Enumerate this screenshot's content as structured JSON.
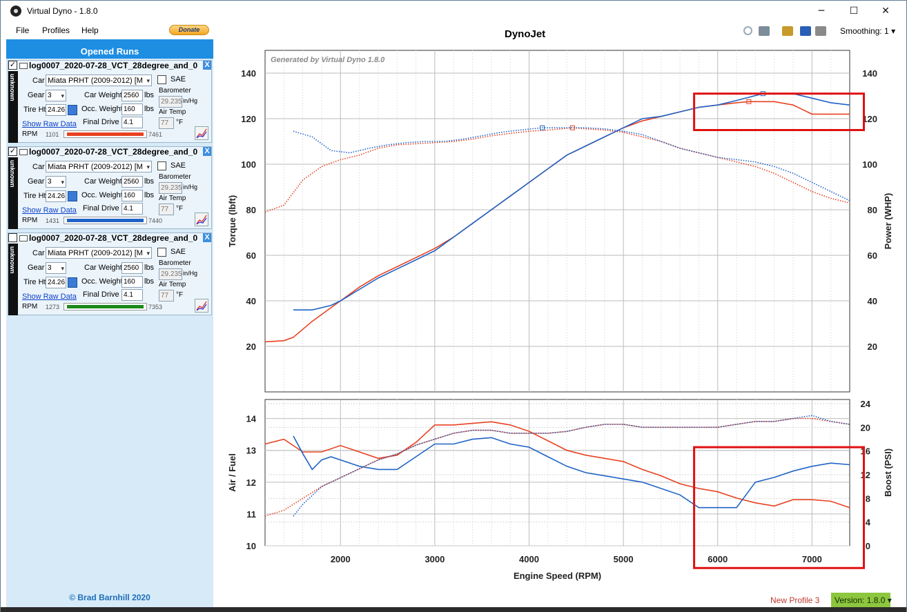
{
  "window": {
    "title": "Virtual Dyno - 1.8.0",
    "minimize": "─",
    "maximize": "☐",
    "close": "✕"
  },
  "menu": {
    "file": "File",
    "profiles": "Profiles",
    "help": "Help",
    "donate": "Donate"
  },
  "sidebar": {
    "header": "Opened Runs",
    "copyright": "© Brad Barnhill 2020",
    "runs": [
      {
        "checked": true,
        "title": "log0007_2020-07-28_VCT_28degree_and_0",
        "side_label": "unknown",
        "car_label": "Car",
        "car": "Miata PRHT (2009-2012) [M",
        "sae_label": "SAE",
        "gear_label": "Gear",
        "gear": "3",
        "weight_label": "Car Weight",
        "weight": "2560",
        "weight_unit": "lbs",
        "baro_label": "Barometer",
        "baro": "29.235",
        "baro_unit": "in/Hg",
        "tire_label": "Tire Ht",
        "tire": "24.26",
        "occ_label": "Occ. Weight",
        "occ": "160",
        "occ_unit": "lbs",
        "airtemp_label": "Air Temp",
        "airtemp": "77",
        "airtemp_unit": "°F",
        "raw_label": "Show Raw Data",
        "fd_label": "Final Drive",
        "fd": "4.1",
        "rpm_label": "RPM",
        "rpm_min": "1101",
        "rpm_max": "7461",
        "color": "#e8411f"
      },
      {
        "checked": true,
        "title": "log0007_2020-07-28_VCT_28degree_and_0",
        "side_label": "unknown",
        "car_label": "Car",
        "car": "Miata PRHT (2009-2012) [M",
        "sae_label": "SAE",
        "gear_label": "Gear",
        "gear": "3",
        "weight_label": "Car Weight",
        "weight": "2560",
        "weight_unit": "lbs",
        "baro_label": "Barometer",
        "baro": "29.235",
        "baro_unit": "in/Hg",
        "tire_label": "Tire Ht",
        "tire": "24.26",
        "occ_label": "Occ. Weight",
        "occ": "160",
        "occ_unit": "lbs",
        "airtemp_label": "Air Temp",
        "airtemp": "77",
        "airtemp_unit": "°F",
        "raw_label": "Show Raw Data",
        "fd_label": "Final Drive",
        "fd": "4.1",
        "rpm_label": "RPM",
        "rpm_min": "1431",
        "rpm_max": "7440",
        "color": "#1f63c6"
      },
      {
        "checked": false,
        "title": "log0007_2020-07-28_VCT_28degree_and_0",
        "side_label": "unknown",
        "car_label": "Car",
        "car": "Miata PRHT (2009-2012) [M",
        "sae_label": "SAE",
        "gear_label": "Gear",
        "gear": "3",
        "weight_label": "Car Weight",
        "weight": "2560",
        "weight_unit": "lbs",
        "baro_label": "Barometer",
        "baro": "29.235",
        "baro_unit": "in/Hg",
        "tire_label": "Tire Ht",
        "tire": "24.26",
        "occ_label": "Occ. Weight",
        "occ": "160",
        "occ_unit": "lbs",
        "airtemp_label": "Air Temp",
        "airtemp": "77",
        "airtemp_unit": "°F",
        "raw_label": "Show Raw Data",
        "fd_label": "Final Drive",
        "fd": "4.1",
        "rpm_label": "RPM",
        "rpm_min": "1273",
        "rpm_max": "7353",
        "color": "#1a8a1a"
      }
    ]
  },
  "toolbar": {
    "smoothing": "Smoothing: 1"
  },
  "footer": {
    "profile": "New Profile 3",
    "version": "Version: 1.8.0"
  },
  "chart_data": [
    {
      "type": "line",
      "title": "DynoJet",
      "watermark": "Generated by Virtual Dyno 1.8.0",
      "xlabel": "Engine Speed (RPM)",
      "ylabel": "Torque (lbft)",
      "y2label": "Power (WHP)",
      "xlim": [
        1200,
        7400
      ],
      "ylim": [
        0,
        150
      ],
      "y2lim": [
        0,
        150
      ],
      "yticks": [
        20,
        40,
        60,
        80,
        100,
        120,
        140
      ],
      "grid": true,
      "series": [
        {
          "color": "#e8411f",
          "style": "dotted",
          "axis": "y",
          "x": [
            1200,
            1400,
            1600,
            1800,
            2000,
            2200,
            2400,
            2600,
            2800,
            3000,
            3200,
            3400,
            3600,
            3800,
            4000,
            4200,
            4460,
            4600,
            4800,
            5000,
            5200,
            5400,
            5600,
            5800,
            6000,
            6200,
            6400,
            6600,
            6800,
            7000,
            7200,
            7400
          ],
          "y": [
            79,
            82,
            93,
            99,
            102,
            104,
            107,
            108.5,
            109,
            109.5,
            110,
            111,
            112.5,
            113.5,
            114.5,
            115,
            116,
            115.5,
            115,
            114,
            112,
            110,
            107,
            105,
            103,
            101,
            99,
            96,
            92,
            88,
            85,
            83
          ]
        },
        {
          "color": "#1f63c6",
          "style": "dotted",
          "axis": "y",
          "x": [
            1500,
            1700,
            1900,
            2100,
            2300,
            2500,
            2700,
            2900,
            3100,
            3300,
            3500,
            3700,
            3900,
            4140,
            4400,
            4600,
            4800,
            5000,
            5200,
            5400,
            5600,
            5800,
            6000,
            6200,
            6400,
            6600,
            6800,
            7000,
            7200,
            7400
          ],
          "y": [
            114.5,
            112,
            106,
            105,
            107,
            108.5,
            109.5,
            110,
            110,
            111,
            112.5,
            114,
            115,
            116,
            116,
            116,
            115.5,
            114.5,
            113,
            110,
            107,
            105,
            103,
            102,
            101,
            99,
            96,
            92,
            88,
            84
          ]
        },
        {
          "color": "#e8411f",
          "style": "solid",
          "axis": "y2",
          "x": [
            1200,
            1400,
            1500,
            1700,
            1900,
            2000,
            2200,
            2400,
            2600,
            2800,
            3000,
            3200,
            3400,
            3600,
            3800,
            4000,
            4200,
            4400,
            4600,
            4800,
            5000,
            5200,
            5400,
            5600,
            5800,
            6000,
            6200,
            6330,
            6600,
            6800,
            6900,
            7000,
            7200,
            7400
          ],
          "y": [
            22,
            22.5,
            24,
            31,
            37,
            40,
            46,
            51,
            55,
            59,
            63,
            68,
            74,
            80,
            86,
            92,
            98,
            104,
            108,
            112,
            116,
            119,
            121,
            123,
            125,
            126,
            127,
            127.5,
            127.5,
            126,
            124,
            122,
            122,
            122
          ]
        },
        {
          "color": "#1f63c6",
          "style": "solid",
          "axis": "y2",
          "x": [
            1500,
            1700,
            1900,
            2000,
            2200,
            2400,
            2600,
            2800,
            3000,
            3200,
            3400,
            3600,
            3800,
            4000,
            4200,
            4400,
            4600,
            4800,
            5000,
            5200,
            5400,
            5600,
            5800,
            6000,
            6200,
            6480,
            6600,
            6800,
            7000,
            7200,
            7400
          ],
          "y": [
            36,
            36,
            38,
            40,
            45,
            50,
            54,
            58,
            62,
            68,
            74,
            80,
            86,
            92,
            98,
            104,
            108,
            112,
            116,
            120,
            121,
            123,
            125,
            126,
            128,
            131,
            131,
            131,
            129,
            127,
            126
          ]
        }
      ],
      "markers": [
        {
          "x": 4140,
          "y": 116,
          "color": "#1f63c6"
        },
        {
          "x": 4460,
          "y": 116,
          "color": "#e8411f"
        },
        {
          "x": 6480,
          "y": 131,
          "color": "#1f63c6"
        },
        {
          "x": 6330,
          "y": 127.5,
          "color": "#e8411f"
        }
      ],
      "highlight": {
        "x": [
          5750,
          7550
        ],
        "y": [
          115,
          131
        ]
      }
    },
    {
      "type": "line",
      "xlabel": "Engine Speed (RPM)",
      "ylabel": "Air / Fuel",
      "y2label": "Boost (PSI)",
      "xlim": [
        1200,
        7400
      ],
      "ylim": [
        10,
        14.6
      ],
      "y2lim": [
        0,
        24.7
      ],
      "yticks": [
        10,
        11,
        12,
        13,
        14
      ],
      "y2ticks": [
        0,
        4,
        8,
        12,
        16,
        20,
        24
      ],
      "xticks": [
        2000,
        3000,
        4000,
        5000,
        6000,
        7000
      ],
      "grid": true,
      "series": [
        {
          "color": "#e8411f",
          "style": "solid",
          "axis": "y",
          "x": [
            1200,
            1400,
            1600,
            1800,
            2000,
            2200,
            2400,
            2600,
            2800,
            3000,
            3200,
            3400,
            3600,
            3800,
            4000,
            4200,
            4400,
            4600,
            4800,
            5000,
            5200,
            5400,
            5600,
            5800,
            6000,
            6200,
            6400,
            6600,
            6800,
            7000,
            7200,
            7400
          ],
          "y": [
            13.2,
            13.35,
            12.95,
            12.95,
            13.15,
            12.95,
            12.75,
            12.85,
            13.25,
            13.8,
            13.8,
            13.85,
            13.9,
            13.8,
            13.6,
            13.3,
            13.0,
            12.85,
            12.75,
            12.65,
            12.4,
            12.2,
            11.95,
            11.8,
            11.7,
            11.5,
            11.35,
            11.25,
            11.45,
            11.45,
            11.4,
            11.2
          ]
        },
        {
          "color": "#1f63c6",
          "style": "solid",
          "axis": "y",
          "x": [
            1500,
            1600,
            1700,
            1800,
            1900,
            2000,
            2200,
            2400,
            2600,
            2800,
            3000,
            3200,
            3400,
            3600,
            3800,
            4000,
            4200,
            4400,
            4600,
            4800,
            5000,
            5200,
            5400,
            5600,
            5800,
            6000,
            6200,
            6400,
            6600,
            6800,
            7000,
            7200,
            7400
          ],
          "y": [
            13.45,
            12.9,
            12.4,
            12.7,
            12.8,
            12.7,
            12.5,
            12.4,
            12.4,
            12.8,
            13.2,
            13.2,
            13.35,
            13.4,
            13.2,
            13.1,
            12.8,
            12.5,
            12.3,
            12.2,
            12.1,
            12.0,
            11.8,
            11.6,
            11.2,
            11.2,
            11.2,
            12.0,
            12.15,
            12.35,
            12.5,
            12.6,
            12.55
          ]
        },
        {
          "color": "#e8411f",
          "style": "dotted",
          "axis": "y2",
          "x": [
            1200,
            1400,
            1600,
            1800,
            2000,
            2200,
            2400,
            2600,
            2800,
            3000,
            3200,
            3400,
            3600,
            3800,
            4000,
            4200,
            4400,
            4600,
            4800,
            5000,
            5200,
            5400,
            5600,
            5800,
            6000,
            6200,
            6400,
            6600,
            6800,
            7000,
            7200,
            7400
          ],
          "y": [
            5,
            6,
            8,
            10,
            11.5,
            13,
            14.5,
            15.5,
            17,
            18,
            19,
            19.5,
            19.5,
            19,
            19,
            19,
            19.3,
            20,
            20.5,
            20.5,
            20,
            20,
            20,
            20,
            20,
            20.5,
            21,
            21,
            21.5,
            21.5,
            21,
            20.5
          ]
        },
        {
          "color": "#1f63c6",
          "style": "dotted",
          "axis": "y2",
          "x": [
            1500,
            1600,
            1800,
            2000,
            2200,
            2400,
            2600,
            2800,
            3000,
            3200,
            3400,
            3600,
            3800,
            4000,
            4200,
            4400,
            4600,
            4800,
            5000,
            5200,
            5400,
            5600,
            5800,
            6000,
            6200,
            6400,
            6600,
            6800,
            7000,
            7200,
            7400
          ],
          "y": [
            5,
            7,
            10,
            11.5,
            13,
            14.5,
            15.5,
            17,
            18,
            19,
            19.5,
            19.5,
            19,
            19,
            19,
            19.3,
            20,
            20.5,
            20.5,
            20,
            20,
            20,
            20,
            20,
            20.5,
            21,
            21,
            21.5,
            22,
            21,
            20.5
          ]
        }
      ],
      "highlight": {
        "x": [
          5750,
          7550
        ],
        "y": [
          9.3,
          13.1
        ]
      }
    }
  ]
}
